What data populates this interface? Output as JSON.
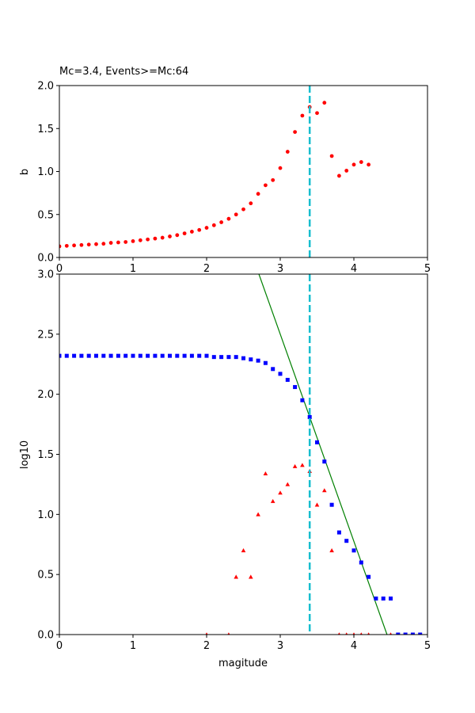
{
  "chart_data": [
    {
      "type": "scatter",
      "title": "Mc=3.4, Events>=Mc:64",
      "xlabel": "",
      "ylabel": "b",
      "xlim": [
        0,
        5
      ],
      "ylim": [
        0,
        2.0
      ],
      "xticks": [
        "0",
        "1",
        "2",
        "3",
        "4",
        "5"
      ],
      "yticks": [
        "0.0",
        "0.5",
        "1.0",
        "1.5",
        "2.0"
      ],
      "grid": false,
      "mc_line": {
        "x": 3.4,
        "color": "#17becf",
        "style": "dashed"
      },
      "series": [
        {
          "marker": "circle",
          "color": "#ff0000",
          "x": [
            0.0,
            0.1,
            0.2,
            0.3,
            0.4,
            0.5,
            0.6,
            0.7,
            0.8,
            0.9,
            1.0,
            1.1,
            1.2,
            1.3,
            1.4,
            1.5,
            1.6,
            1.7,
            1.8,
            1.9,
            2.0,
            2.1,
            2.2,
            2.3,
            2.4,
            2.5,
            2.6,
            2.7,
            2.8,
            2.9,
            3.0,
            3.1,
            3.2,
            3.3,
            3.4,
            3.5,
            3.6,
            3.7,
            3.8,
            3.9,
            4.0,
            4.1,
            4.2
          ],
          "y": [
            0.13,
            0.135,
            0.14,
            0.145,
            0.15,
            0.155,
            0.16,
            0.17,
            0.175,
            0.18,
            0.19,
            0.2,
            0.21,
            0.22,
            0.23,
            0.245,
            0.26,
            0.28,
            0.3,
            0.32,
            0.345,
            0.375,
            0.41,
            0.45,
            0.5,
            0.56,
            0.63,
            0.74,
            0.84,
            0.9,
            1.04,
            1.23,
            1.46,
            1.65,
            1.75,
            1.68,
            1.8,
            1.18,
            0.95,
            1.01,
            1.08,
            1.11,
            1.08
          ]
        }
      ]
    },
    {
      "type": "scatter",
      "title": "",
      "xlabel": "magitude",
      "ylabel": "log10",
      "xlim": [
        0,
        5
      ],
      "ylim": [
        0,
        3.0
      ],
      "xticks": [
        "0",
        "1",
        "2",
        "3",
        "4",
        "5"
      ],
      "yticks": [
        "0.0",
        "0.5",
        "1.0",
        "1.5",
        "2.0",
        "2.5",
        "3.0"
      ],
      "grid": false,
      "mc_line": {
        "x": 3.4,
        "color": "#17becf",
        "style": "dashed"
      },
      "fit_line": {
        "color": "#008000",
        "x1": 2.71,
        "y1": 3.0,
        "x2": 4.45,
        "y2": 0.0
      },
      "series": [
        {
          "marker": "square",
          "color": "#0000ff",
          "x": [
            0.0,
            0.1,
            0.2,
            0.3,
            0.4,
            0.5,
            0.6,
            0.7,
            0.8,
            0.9,
            1.0,
            1.1,
            1.2,
            1.3,
            1.4,
            1.5,
            1.6,
            1.7,
            1.8,
            1.9,
            2.0,
            2.1,
            2.2,
            2.3,
            2.4,
            2.5,
            2.6,
            2.7,
            2.8,
            2.9,
            3.0,
            3.1,
            3.2,
            3.3,
            3.4,
            3.5,
            3.6,
            3.7,
            3.8,
            3.9,
            4.0,
            4.1,
            4.2,
            4.3,
            4.4,
            4.5,
            4.6,
            4.7,
            4.8,
            4.9
          ],
          "y": [
            2.32,
            2.32,
            2.32,
            2.32,
            2.32,
            2.32,
            2.32,
            2.32,
            2.32,
            2.32,
            2.32,
            2.32,
            2.32,
            2.32,
            2.32,
            2.32,
            2.32,
            2.32,
            2.32,
            2.32,
            2.32,
            2.31,
            2.31,
            2.31,
            2.31,
            2.3,
            2.29,
            2.28,
            2.26,
            2.21,
            2.17,
            2.12,
            2.06,
            1.95,
            1.81,
            1.6,
            1.44,
            1.08,
            0.85,
            0.78,
            0.7,
            0.6,
            0.48,
            0.3,
            0.3,
            0.3,
            0.0,
            0.0,
            0.0,
            0.0
          ]
        },
        {
          "marker": "triangle",
          "color": "#ff0000",
          "x": [
            2.0,
            2.3,
            2.4,
            2.5,
            2.6,
            2.7,
            2.8,
            2.9,
            3.0,
            3.1,
            3.2,
            3.3,
            3.4,
            3.5,
            3.6,
            3.7,
            3.8,
            3.9,
            4.0,
            4.1,
            4.2,
            4.5
          ],
          "y": [
            0.0,
            0.0,
            0.48,
            0.7,
            0.48,
            1.0,
            1.34,
            1.11,
            1.18,
            1.25,
            1.4,
            1.41,
            1.36,
            1.08,
            1.2,
            0.7,
            0.0,
            0.0,
            0.0,
            0.0,
            0.0,
            0.0
          ]
        }
      ]
    }
  ]
}
